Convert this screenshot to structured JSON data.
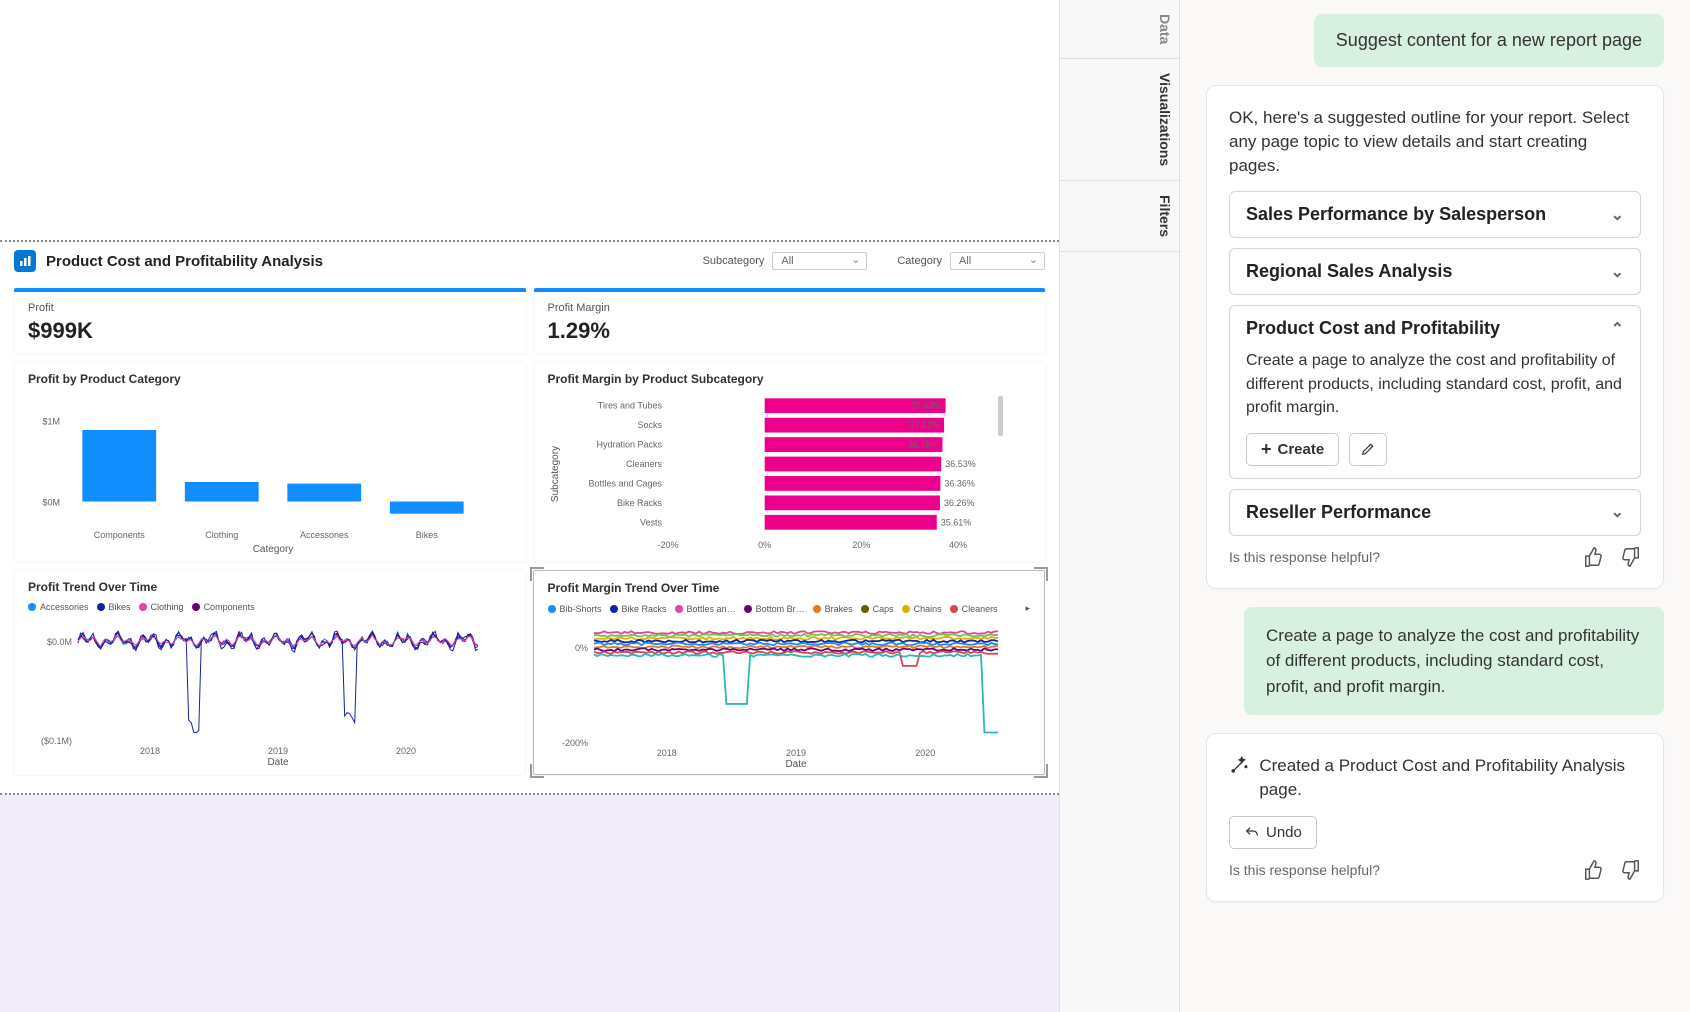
{
  "panes": {
    "data": "Data",
    "viz": "Visualizations",
    "filters": "Filters"
  },
  "report": {
    "title": "Product Cost and Profitability Analysis",
    "slicers": [
      {
        "label": "Subcategory",
        "value": "All"
      },
      {
        "label": "Category",
        "value": "All"
      }
    ],
    "kpi": {
      "profit": {
        "label": "Profit",
        "value": "$999K"
      },
      "margin": {
        "label": "Profit Margin",
        "value": "1.29%"
      }
    },
    "bar_chart": {
      "title": "Profit by Product Category",
      "y_axis_title": "",
      "x_axis_title": "Category",
      "ylim": [
        0,
        1
      ],
      "yticks": [
        "$0M",
        "$1M"
      ],
      "categories": [
        "Components",
        "Clothing",
        "Accessories",
        "Bikes"
      ],
      "values": [
        0.88,
        0.24,
        0.22,
        -0.15
      ],
      "bar_color": "#118dff",
      "background": "#ffffff"
    },
    "hbar_chart": {
      "title": "Profit Margin by Product Subcategory",
      "x_axis": {
        "min": -20,
        "max": 40,
        "ticks": [
          "-20%",
          "0%",
          "20%",
          "40%"
        ]
      },
      "y_axis_title": "Subcategory",
      "rows": [
        {
          "label": "Tires and Tubes",
          "value": 37.43,
          "display": "37.43%"
        },
        {
          "label": "Socks",
          "value": 37.12,
          "display": "37.12%"
        },
        {
          "label": "Hydration Packs",
          "value": 36.79,
          "display": "36.79%"
        },
        {
          "label": "Cleaners",
          "value": 36.53,
          "display": "36.53%"
        },
        {
          "label": "Bottles and Cages",
          "value": 36.36,
          "display": "36.36%"
        },
        {
          "label": "Bike Racks",
          "value": 36.26,
          "display": "36.26%"
        },
        {
          "label": "Vests",
          "value": 35.61,
          "display": "35.61%"
        }
      ],
      "bar_color": "#ec008c",
      "scrollbar": true
    },
    "line1": {
      "title": "Profit Trend Over Time",
      "legend": [
        {
          "label": "Accessories",
          "color": "#118dff"
        },
        {
          "label": "Bikes",
          "color": "#12239e"
        },
        {
          "label": "Clothing",
          "color": "#e044a7"
        },
        {
          "label": "Components",
          "color": "#6b007b"
        }
      ],
      "x_axis_title": "Date",
      "xticks": [
        "2018",
        "2019",
        "2020"
      ],
      "yticks": [
        "($0.1M)",
        "$0.0M"
      ],
      "ylim": [
        -0.1,
        0.02
      ]
    },
    "line2": {
      "title": "Profit Margin Trend Over Time",
      "selected": true,
      "legend": [
        {
          "label": "Bib-Shorts",
          "color": "#118dff"
        },
        {
          "label": "Bike Racks",
          "color": "#12239e"
        },
        {
          "label": "Bottles an…",
          "color": "#e044a7"
        },
        {
          "label": "Bottom Br…",
          "color": "#6b007b"
        },
        {
          "label": "Brakes",
          "color": "#e77917"
        },
        {
          "label": "Caps",
          "color": "#6b5b00"
        },
        {
          "label": "Chains",
          "color": "#d9b300"
        },
        {
          "label": "Cleaners",
          "color": "#d64550"
        }
      ],
      "more_icon": "▸",
      "x_axis_title": "Date",
      "xticks": [
        "2018",
        "2019",
        "2020"
      ],
      "yticks": [
        "-200%",
        "0%"
      ],
      "ylim": [
        -200,
        50
      ]
    }
  },
  "copilot": {
    "prompt1": "Suggest content for a new report page",
    "resp1": "OK, here's a suggested outline for your report. Select any page topic to view details and start creating pages.",
    "topics": [
      {
        "title": "Sales Performance by Salesperson",
        "expanded": false
      },
      {
        "title": "Regional Sales Analysis",
        "expanded": false
      },
      {
        "title": "Product Cost and Profitability",
        "expanded": true,
        "desc": "Create a page to analyze the cost and profitability of different products, including standard cost, profit, and profit margin.",
        "create": "Create"
      },
      {
        "title": "Reseller Performance",
        "expanded": false
      }
    ],
    "helpful": "Is this response helpful?",
    "prompt2": "Create a page to analyze the cost and profitability of different products, including standard cost, profit, and profit margin.",
    "resp2": "Created a Product Cost and Profitability Analysis page.",
    "undo": "Undo"
  }
}
